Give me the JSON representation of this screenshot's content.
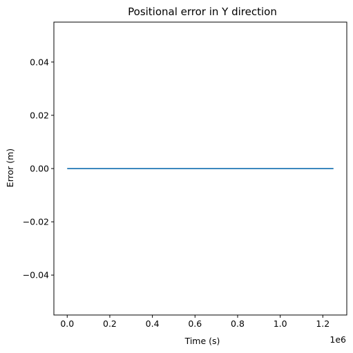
{
  "chart_data": {
    "type": "line",
    "title": "Positional error in Y direction",
    "xlabel": "Time (s)",
    "ylabel": "Error (m)",
    "x_offset_label": "1e6",
    "xlim": [
      -0.0625,
      1.3125
    ],
    "ylim": [
      -0.055,
      0.055
    ],
    "x_ticks": [
      0.0,
      0.2,
      0.4,
      0.6,
      0.8,
      1.0,
      1.2
    ],
    "x_tick_labels": [
      "0.0",
      "0.2",
      "0.4",
      "0.6",
      "0.8",
      "1.0",
      "1.2"
    ],
    "y_ticks": [
      0.04,
      0.02,
      0.0,
      -0.02,
      -0.04
    ],
    "y_tick_labels": [
      "0.04",
      "0.02",
      "0.00",
      "−0.02",
      "−0.04"
    ],
    "grid": false,
    "legend": "none",
    "series": [
      {
        "x": [
          0.0,
          1.25
        ],
        "y": [
          0.0,
          0.0
        ],
        "color": "#1f77b4"
      }
    ]
  }
}
